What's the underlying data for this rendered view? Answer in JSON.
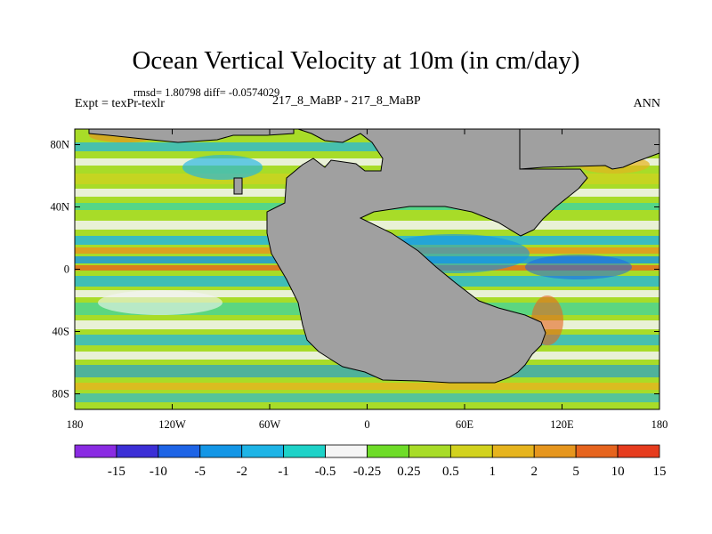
{
  "title": "Ocean Vertical Velocity at 10m (in cm/day)",
  "stats": "rmsd= 1.80798 diff= -0.0574029",
  "expt": "Expt = texPr-texlr",
  "center_label": "217_8_MaBP - 217_8_MaBP",
  "season": "ANN",
  "map": {
    "lon_range": [
      -180,
      180
    ],
    "lat_range": [
      -90,
      90
    ],
    "land_color": "#a0a0a0",
    "x_ticks": [
      {
        "lon": -180,
        "label": "180"
      },
      {
        "lon": -120,
        "label": "120W"
      },
      {
        "lon": -60,
        "label": "60W"
      },
      {
        "lon": 0,
        "label": "0"
      },
      {
        "lon": 60,
        "label": "60E"
      },
      {
        "lon": 120,
        "label": "120E"
      },
      {
        "lon": 180,
        "label": "180"
      }
    ],
    "y_ticks": [
      {
        "lat": 80,
        "label": "80N"
      },
      {
        "lat": 40,
        "label": "40N"
      },
      {
        "lat": 0,
        "label": "0"
      },
      {
        "lat": -40,
        "label": "40S"
      },
      {
        "lat": -80,
        "label": "80S"
      }
    ]
  },
  "colorbar": {
    "colors": [
      "#8a2be2",
      "#3c2fd6",
      "#1e64e6",
      "#1496e6",
      "#1eb4e6",
      "#1ed2c8",
      "#f5f5f5",
      "#6edc28",
      "#a8dc28",
      "#d2d21e",
      "#e6b41e",
      "#e6961e",
      "#e6641e",
      "#e63c1e"
    ],
    "labels": [
      "-15",
      "-10",
      "-5",
      "-2",
      "-1",
      "-0.5",
      "-0.25",
      "0.25",
      "0.5",
      "1",
      "2",
      "5",
      "10",
      "15"
    ]
  }
}
